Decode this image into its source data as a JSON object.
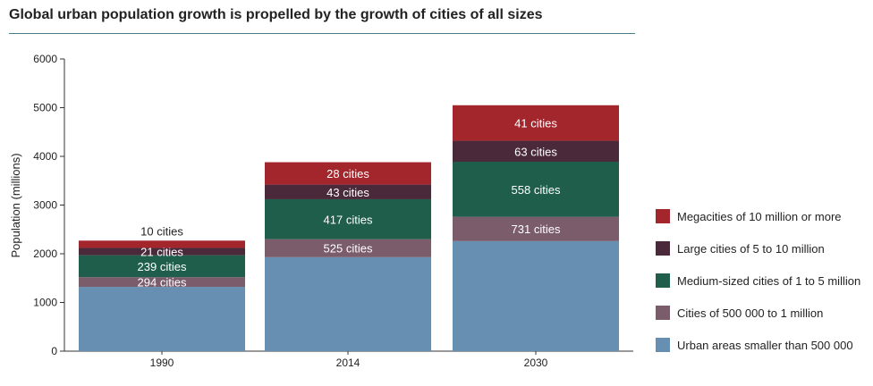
{
  "chart_data": {
    "type": "bar",
    "stacked": true,
    "title": "Global urban population growth is propelled by the growth of cities of all sizes",
    "xlabel": "",
    "ylabel": "Population (millions)",
    "ylim": [
      0,
      6000
    ],
    "yticks": [
      0,
      1000,
      2000,
      3000,
      4000,
      5000,
      6000
    ],
    "categories": [
      "1990",
      "2014",
      "2030"
    ],
    "series": [
      {
        "name": "Urban areas smaller than 500 000",
        "color": "#678fb1",
        "values": [
          1320,
          1930,
          2260
        ],
        "labels": [
          "",
          "",
          ""
        ]
      },
      {
        "name": "Cities of 500 000 to 1 million",
        "color": "#7a5c6b",
        "values": [
          200,
          370,
          500
        ],
        "labels": [
          "294 cities",
          "525 cities",
          "731 cities"
        ]
      },
      {
        "name": "Medium-sized cities of 1 to 5 million",
        "color": "#1f5e4b",
        "values": [
          450,
          820,
          1130
        ],
        "labels": [
          "239 cities",
          "417 cities",
          "558 cities"
        ]
      },
      {
        "name": "Large cities of 5 to 10 million",
        "color": "#4a2a3a",
        "values": [
          150,
          300,
          430
        ],
        "labels": [
          "21 cities",
          "43 cities",
          "63 cities"
        ]
      },
      {
        "name": "Megacities of 10 million or more",
        "color": "#a3262d",
        "values": [
          150,
          460,
          730
        ],
        "labels": [
          "10 cities",
          "28 cities",
          "41 cities"
        ]
      }
    ],
    "legend_position": "right",
    "grid": false
  }
}
